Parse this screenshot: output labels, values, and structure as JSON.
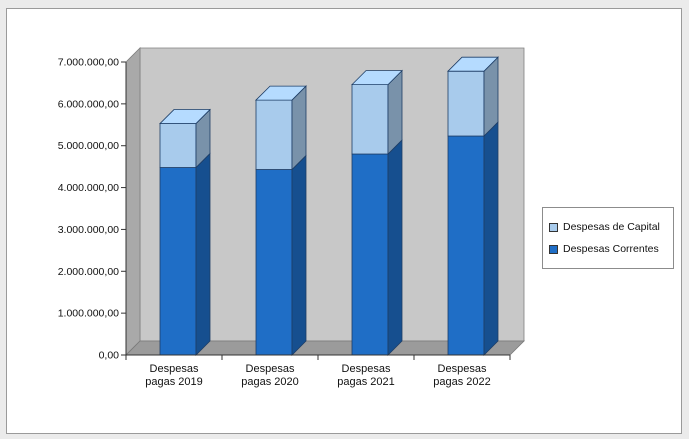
{
  "chart_data": {
    "type": "bar",
    "stacked": true,
    "three_d": true,
    "categories": [
      [
        "Despesas",
        "pagas 2019"
      ],
      [
        "Despesas",
        "pagas 2020"
      ],
      [
        "Despesas",
        "pagas 2021"
      ],
      [
        "Despesas",
        "pagas 2022"
      ]
    ],
    "series": [
      {
        "name": "Despesas Correntes",
        "color": "#1f6ec6",
        "values": [
          4480000,
          4430000,
          4800000,
          5230000
        ]
      },
      {
        "name": "Despesas de Capital",
        "color": "#a8cbec",
        "values": [
          1050000,
          1660000,
          1660000,
          1550000
        ]
      }
    ],
    "ylim": [
      0,
      7000000
    ],
    "ytick_values": [
      0,
      1000000,
      2000000,
      3000000,
      4000000,
      5000000,
      6000000,
      7000000
    ],
    "ytick_labels": [
      "0,00",
      "1.000.000,00",
      "2.000.000,00",
      "3.000.000,00",
      "4.000.000,00",
      "5.000.000,00",
      "6.000.000,00",
      "7.000.000,00"
    ],
    "grid": false,
    "legend_position": "right",
    "legend_order": [
      "Despesas de Capital",
      "Despesas Correntes"
    ],
    "wall_color": "#c8c8c8",
    "floor_color": "#9b9b9b"
  }
}
